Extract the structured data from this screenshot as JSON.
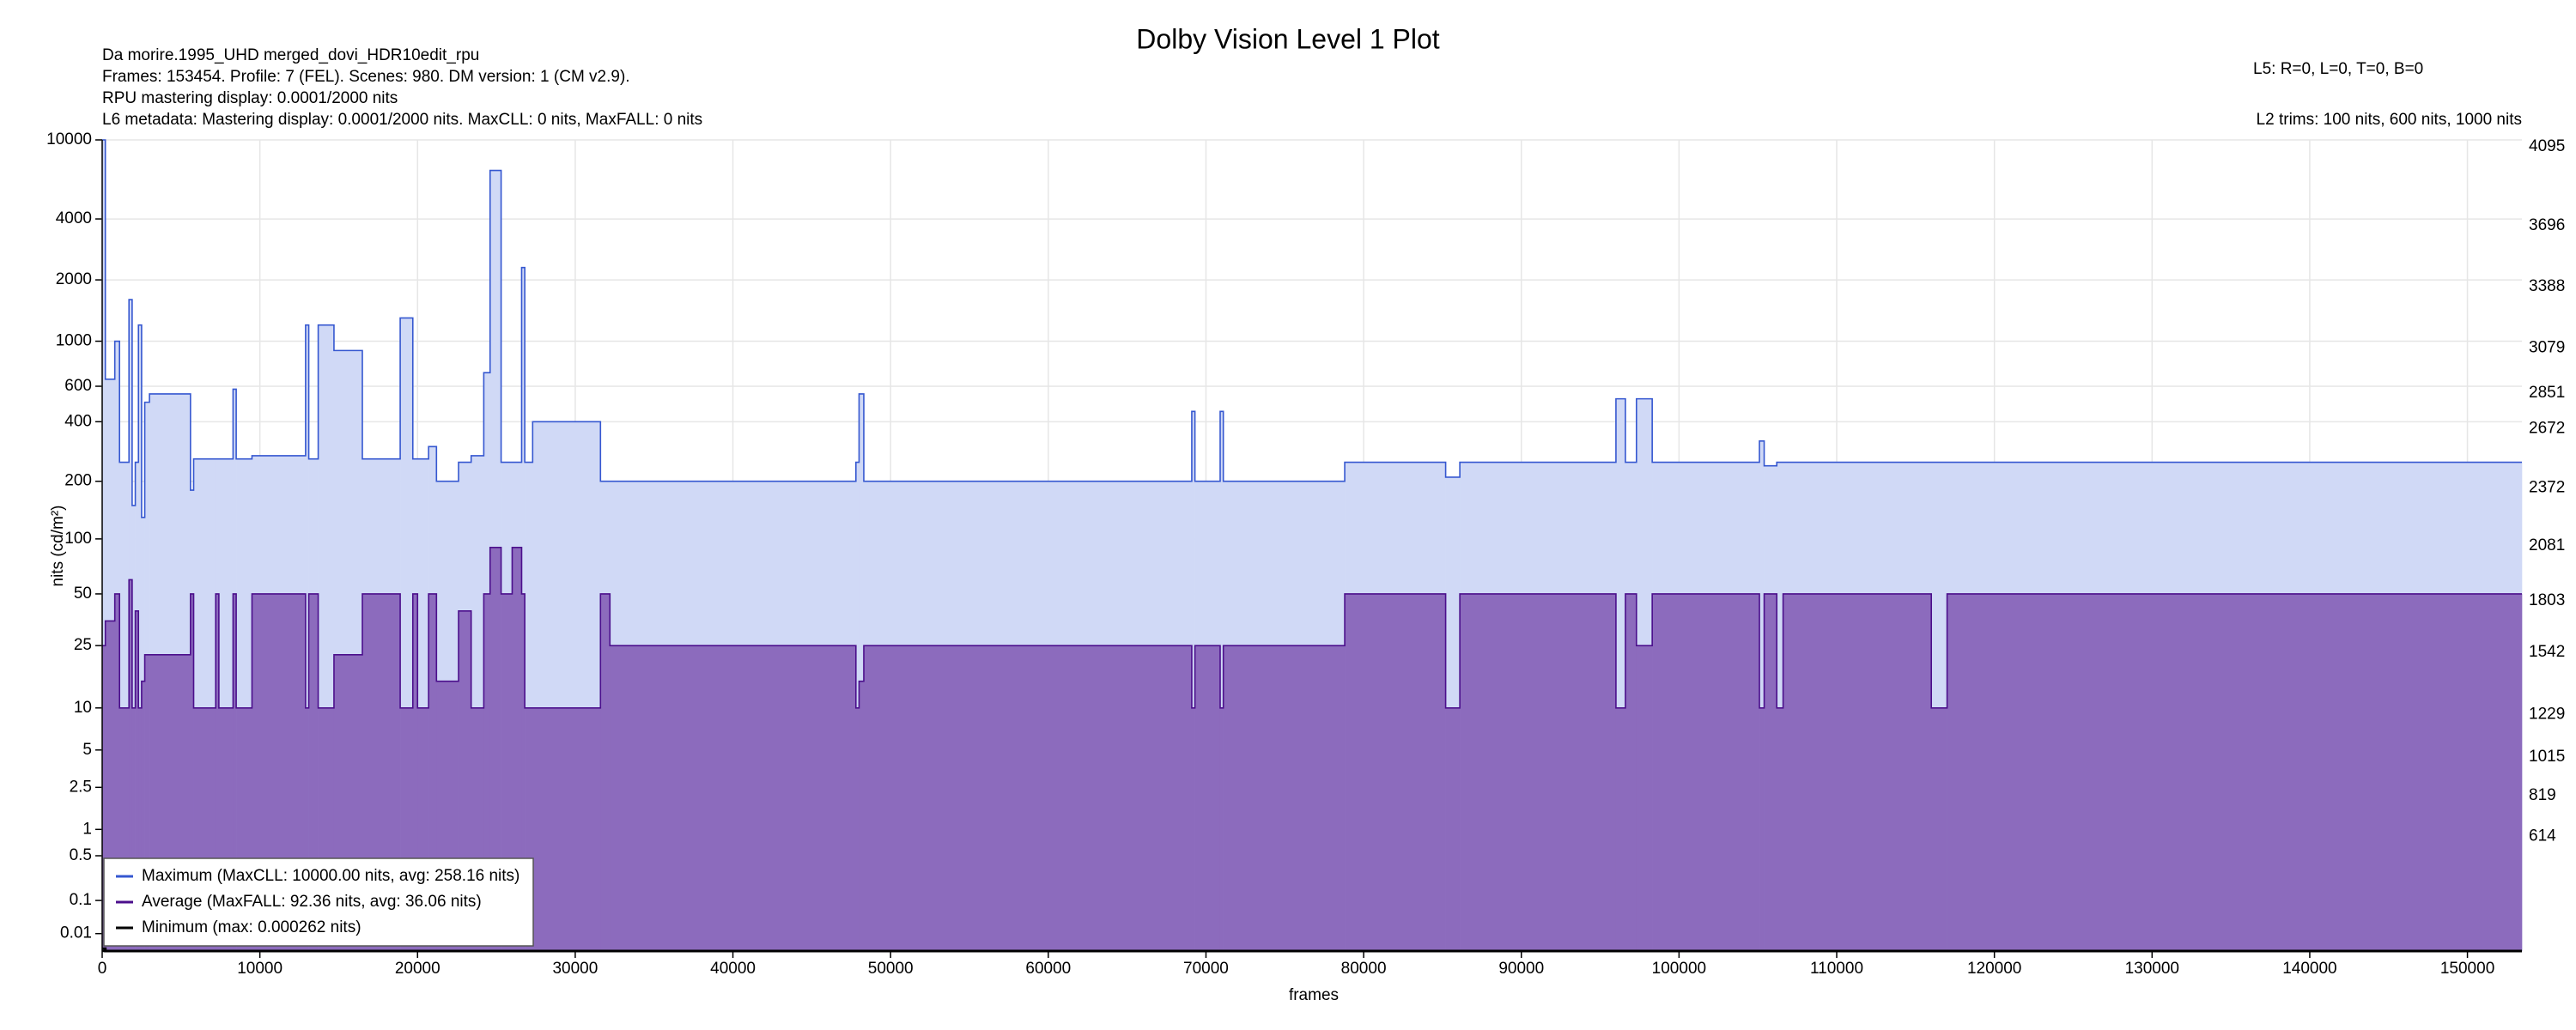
{
  "chart_data": {
    "type": "step-area",
    "title": "Dolby Vision Level 1 Plot",
    "info": [
      "Da morire.1995_UHD merged_dovi_HDR10edit_rpu",
      "Frames: 153454. Profile: 7 (FEL). Scenes: 980. DM version: 1 (CM v2.9).",
      "RPU mastering display: 0.0001/2000 nits",
      "L6 metadata: Mastering display: 0.0001/2000 nits. MaxCLL: 0 nits, MaxFALL: 0 nits"
    ],
    "info_right": [
      "L5: R=0, L=0, T=0, B=0",
      "L2 trims: 100 nits, 600 nits, 1000 nits"
    ],
    "xlabel": "frames",
    "ylabel": "nits (cd/m²)",
    "xlim": [
      0,
      153454
    ],
    "xticks": [
      0,
      10000,
      20000,
      30000,
      40000,
      50000,
      60000,
      70000,
      80000,
      90000,
      100000,
      110000,
      120000,
      130000,
      140000,
      150000
    ],
    "yscale": "pq",
    "ylim": [
      0,
      10000
    ],
    "yticks": [
      0.01,
      0.1,
      0.5,
      1,
      2.5,
      5,
      10,
      25,
      50,
      100,
      200,
      400,
      600,
      1000,
      2000,
      4000,
      10000
    ],
    "y2lim": [
      0,
      4095
    ],
    "y2ticks": [
      614,
      819,
      1015,
      1229,
      1542,
      1803,
      2081,
      2372,
      2672,
      2851,
      3079,
      3388,
      3696,
      4095
    ],
    "grid": true,
    "legend": "lower left",
    "x": [
      0,
      200,
      800,
      1100,
      1700,
      1900,
      2100,
      2300,
      2500,
      2700,
      3000,
      5600,
      5800,
      7200,
      7400,
      8300,
      8500,
      9500,
      12900,
      13100,
      13700,
      14700,
      16500,
      18900,
      19700,
      20000,
      20700,
      21200,
      22600,
      23400,
      24200,
      24600,
      25300,
      26000,
      26600,
      26800,
      27300,
      31600,
      32200,
      47800,
      48000,
      48300,
      48700,
      69100,
      69300,
      70900,
      71100,
      78800,
      85200,
      86100,
      96000,
      96600,
      97300,
      98300,
      105100,
      105400,
      106200,
      106600,
      116000,
      117000
    ],
    "series": [
      {
        "name": "Maximum (MaxCLL: 10000.00 nits, avg: 258.16 nits)",
        "color": "#3557d0",
        "fill": "#d0d9f6",
        "values": [
          10000,
          650,
          1000,
          250,
          1600,
          150,
          250,
          1200,
          130,
          500,
          550,
          180,
          260,
          260,
          260,
          580,
          260,
          270,
          1200,
          260,
          1200,
          900,
          260,
          1300,
          260,
          260,
          300,
          200,
          250,
          270,
          700,
          7000,
          250,
          250,
          2300,
          250,
          400,
          200,
          200,
          250,
          550,
          200,
          200,
          450,
          200,
          450,
          200,
          250,
          210,
          250,
          520,
          250,
          520,
          250,
          320,
          240,
          250,
          250,
          250,
          250
        ]
      },
      {
        "name": "Average (MaxFALL: 92.36 nits, avg: 36.06 nits)",
        "color": "#4b0f8c",
        "fill": "#8c6bbd",
        "values": [
          25,
          35,
          50,
          10,
          60,
          10,
          40,
          10,
          15,
          22,
          22,
          50,
          10,
          50,
          10,
          50,
          10,
          50,
          10,
          50,
          10,
          22,
          50,
          10,
          50,
          10,
          50,
          15,
          40,
          10,
          50,
          90,
          50,
          90,
          50,
          10,
          10,
          50,
          25,
          10,
          15,
          25,
          25,
          10,
          25,
          10,
          25,
          50,
          10,
          50,
          10,
          50,
          25,
          50,
          10,
          50,
          10,
          50,
          10,
          50
        ]
      },
      {
        "name": "Minimum (max: 0.000262 nits)",
        "color": "#000000",
        "values": [
          0.000262,
          0,
          0,
          0,
          0,
          0,
          0,
          0,
          0,
          0,
          0,
          0,
          0,
          0,
          0,
          0,
          0,
          0,
          0,
          0,
          0,
          0,
          0,
          0,
          0,
          0,
          0,
          0,
          0,
          0,
          0,
          0,
          0,
          0,
          0,
          0,
          0,
          0,
          0,
          0,
          0,
          0,
          0,
          0,
          0,
          0,
          0,
          0,
          0,
          0,
          0,
          0,
          0,
          0,
          0,
          0,
          0,
          0,
          0,
          0
        ]
      }
    ]
  }
}
